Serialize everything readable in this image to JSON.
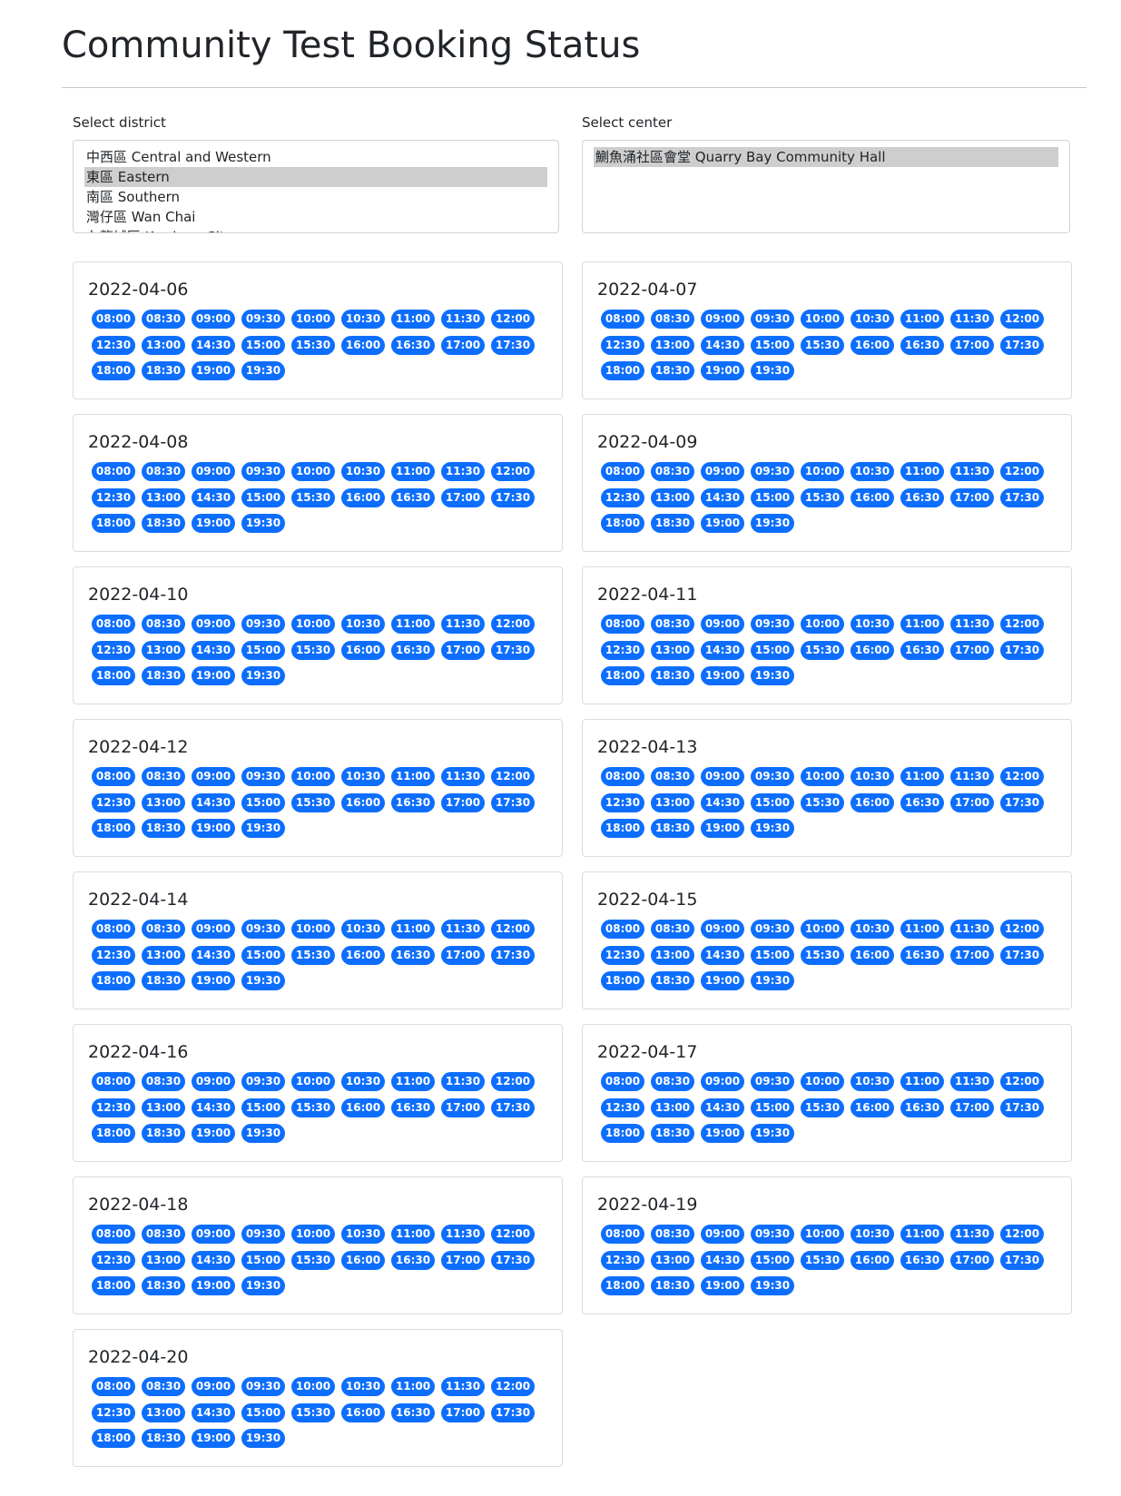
{
  "title": "Community Test Booking Status",
  "district_label": "Select district",
  "center_label": "Select center",
  "districts": [
    {
      "label": "中西區 Central and Western",
      "selected": false
    },
    {
      "label": "東區 Eastern",
      "selected": true
    },
    {
      "label": "南區 Southern",
      "selected": false
    },
    {
      "label": "灣仔區 Wan Chai",
      "selected": false
    },
    {
      "label": "九龍城區 Kowloon City",
      "selected": false
    }
  ],
  "centers": [
    {
      "label": "鰂魚涌社區會堂 Quarry Bay Community Hall",
      "selected": true
    }
  ],
  "colors": {
    "badge": "#0d6efd",
    "selected_option": "#cecece",
    "card_border": "#dcdcdc"
  },
  "time_slots": [
    "08:00",
    "08:30",
    "09:00",
    "09:30",
    "10:00",
    "10:30",
    "11:00",
    "11:30",
    "12:00",
    "12:30",
    "13:00",
    "14:30",
    "15:00",
    "15:30",
    "16:00",
    "16:30",
    "17:00",
    "17:30",
    "18:00",
    "18:30",
    "19:00",
    "19:30"
  ],
  "dates": [
    "2022-04-06",
    "2022-04-07",
    "2022-04-08",
    "2022-04-09",
    "2022-04-10",
    "2022-04-11",
    "2022-04-12",
    "2022-04-13",
    "2022-04-14",
    "2022-04-15",
    "2022-04-16",
    "2022-04-17",
    "2022-04-18",
    "2022-04-19",
    "2022-04-20"
  ]
}
